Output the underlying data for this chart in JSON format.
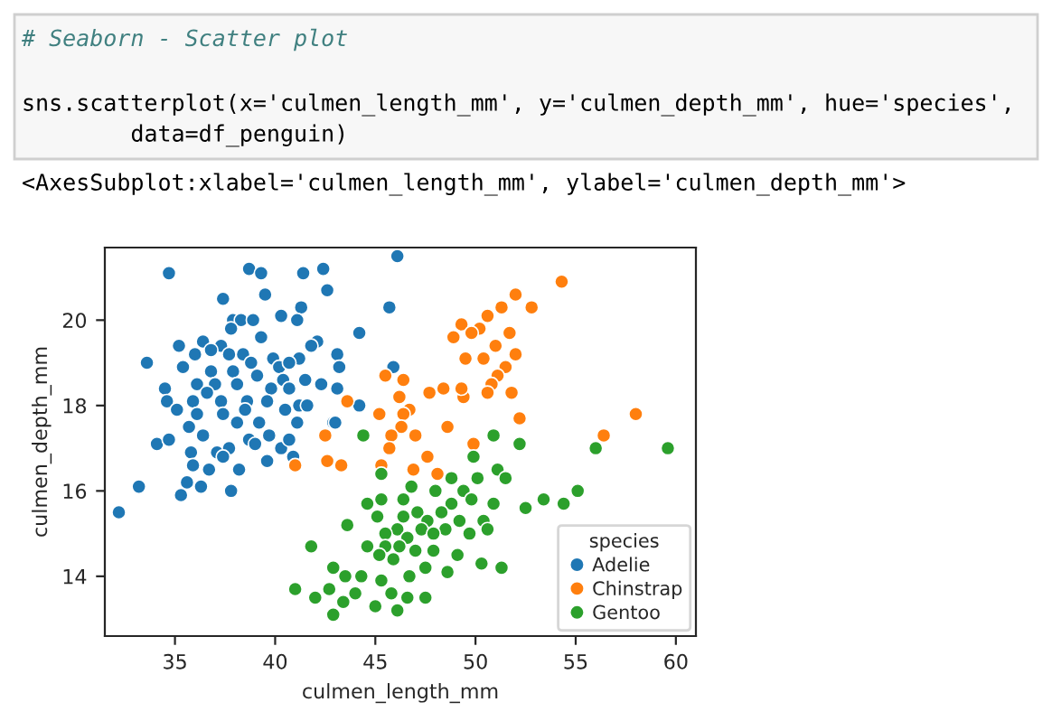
{
  "chart_data": {
    "type": "scatter",
    "xlabel": "culmen_length_mm",
    "ylabel": "culmen_depth_mm",
    "legend_title": "species",
    "annotations": [
      "# Seaborn - Scatter plot",
      "sns.scatterplot(x='culmen_length_mm', y='culmen_depth_mm', hue='species',",
      "        data=df_penguin)",
      "<AxesSubplot:xlabel='culmen_length_mm', ylabel='culmen_depth_mm'>"
    ],
    "xlim": [
      31.5,
      61
    ],
    "ylim": [
      12.6,
      21.7
    ],
    "xticks": [
      35,
      40,
      45,
      50,
      55,
      60
    ],
    "yticks": [
      14,
      16,
      18,
      20
    ],
    "grid": false,
    "legend": "bottom right",
    "marker": "circle",
    "series": [
      {
        "name": "Adelie",
        "color": "#1f77b4",
        "x": [
          34.7,
          38.7,
          39.3,
          41.4,
          42.4,
          42.6,
          37.4,
          39.5,
          41.3,
          40.3,
          37.9,
          38.3,
          38.9,
          41.1,
          37.8,
          39.3,
          36.4,
          35.2,
          37.3,
          42.1,
          41.8,
          36.0,
          36.8,
          37.7,
          38.4,
          39.9,
          41.2,
          43.1,
          33.6,
          35.4,
          36.8,
          38.8,
          40.2,
          40.7,
          43.2,
          37.9,
          39.1,
          40.4,
          41.5,
          36.1,
          37.0,
          38.1,
          39.8,
          42.3,
          43.1,
          34.5,
          36.6,
          40.7,
          34.6,
          35.9,
          37.3,
          38.6,
          39.6,
          41.2,
          35.1,
          36.1,
          37.4,
          38.5,
          40.5,
          41.6,
          35.7,
          38.1,
          39.2,
          41.1,
          42.9,
          36.4,
          38.7,
          39.7,
          34.1,
          34.7,
          35.8,
          37.1,
          37.7,
          39.0,
          40.3,
          40.7,
          35.9,
          36.7,
          37.4,
          38.2,
          39.6,
          40.9,
          35.6,
          36.3,
          37.8,
          33.2,
          35.3,
          32.2,
          46.1,
          45.7,
          44.2,
          44.2,
          43.0,
          45.9
        ],
        "values": [
          21.1,
          21.2,
          21.1,
          21.1,
          21.2,
          20.7,
          20.5,
          20.6,
          20.3,
          20.1,
          20.0,
          20.0,
          20.0,
          20.0,
          19.8,
          19.6,
          19.5,
          19.4,
          19.4,
          19.5,
          19.4,
          19.2,
          19.3,
          19.2,
          19.2,
          19.1,
          19.1,
          19.2,
          19.0,
          18.9,
          18.8,
          19.0,
          18.9,
          19.0,
          18.9,
          18.8,
          18.7,
          18.6,
          18.6,
          18.5,
          18.5,
          18.5,
          18.4,
          18.5,
          18.4,
          18.4,
          18.3,
          18.4,
          18.1,
          18.1,
          18.1,
          18.1,
          18.1,
          18.0,
          17.9,
          17.8,
          17.8,
          17.9,
          17.9,
          18.0,
          17.5,
          17.6,
          17.6,
          17.6,
          17.6,
          17.3,
          17.2,
          17.3,
          17.1,
          17.2,
          16.9,
          16.9,
          17.0,
          17.1,
          17.0,
          17.2,
          16.6,
          16.5,
          16.8,
          16.5,
          16.7,
          16.8,
          16.2,
          16.1,
          16.0,
          16.1,
          15.9,
          15.5,
          21.5,
          20.3,
          19.7,
          18.0,
          17.6,
          18.9
        ]
      },
      {
        "name": "Chinstrap",
        "color": "#ff7f0e",
        "x": [
          43.6,
          42.5,
          41.0,
          42.6,
          43.3,
          45.5,
          46.4,
          47.7,
          46.2,
          46.7,
          46.4,
          45.2,
          46.3,
          47.0,
          48.6,
          45.8,
          45.7,
          45.3,
          46.9,
          47.6,
          48.1,
          49.3,
          48.9,
          49.4,
          52.0,
          51.3,
          50.6,
          50.2,
          51.7,
          49.8,
          51.0,
          52.0,
          50.4,
          51.5,
          49.5,
          51.1,
          50.8,
          49.3,
          50.6,
          51.8,
          48.4,
          52.2,
          54.3,
          52.8,
          58.0,
          56.4,
          49.9
        ],
        "values": [
          18.1,
          17.3,
          16.6,
          16.7,
          16.6,
          18.7,
          18.6,
          18.3,
          18.2,
          17.9,
          17.8,
          17.8,
          17.5,
          17.3,
          17.5,
          17.3,
          17.0,
          16.6,
          16.5,
          16.8,
          16.4,
          19.9,
          19.6,
          18.2,
          20.6,
          20.3,
          20.1,
          19.8,
          19.7,
          19.7,
          19.4,
          19.2,
          19.1,
          18.9,
          19.1,
          18.7,
          18.5,
          18.4,
          18.3,
          18.3,
          18.4,
          17.7,
          20.9,
          20.3,
          17.8,
          17.3,
          17.1
        ]
      },
      {
        "name": "Gentoo",
        "color": "#2ca02c",
        "x": [
          44.4,
          45.3,
          50.9,
          52.2,
          56.0,
          59.6,
          49.9,
          51.1,
          51.5,
          48.8,
          50.1,
          55.1,
          53.4,
          54.4,
          52.5,
          46.8,
          48.0,
          49.4,
          45.3,
          44.6,
          46.4,
          48.8,
          49.8,
          50.9,
          47.1,
          48.3,
          45.1,
          46.4,
          47.6,
          49.2,
          50.4,
          43.6,
          46.1,
          47.3,
          48.5,
          49.7,
          50.6,
          45.5,
          46.6,
          47.9,
          44.6,
          45.5,
          46.2,
          47.0,
          47.9,
          49.1,
          41.8,
          45.2,
          45.9,
          47.5,
          48.6,
          50.3,
          51.3,
          42.9,
          43.5,
          44.3,
          45.3,
          46.7,
          45.8,
          44.0,
          42.7,
          41.0,
          42.0,
          43.4,
          45.0,
          46.1,
          42.9,
          46.6,
          47.5
        ],
        "values": [
          17.3,
          16.4,
          17.3,
          17.1,
          17.0,
          17.0,
          16.8,
          16.5,
          16.3,
          16.3,
          16.3,
          16.0,
          15.8,
          15.7,
          15.6,
          16.1,
          16.0,
          16.0,
          15.8,
          15.7,
          15.8,
          15.7,
          15.8,
          15.7,
          15.5,
          15.5,
          15.4,
          15.4,
          15.3,
          15.3,
          15.3,
          15.2,
          15.1,
          15.1,
          15.1,
          15.0,
          15.1,
          15.0,
          14.9,
          15.0,
          14.7,
          14.7,
          14.7,
          14.6,
          14.6,
          14.5,
          14.7,
          14.5,
          14.4,
          14.2,
          14.1,
          14.3,
          14.2,
          14.2,
          14.0,
          14.0,
          13.9,
          14.0,
          13.6,
          13.6,
          13.7,
          13.7,
          13.5,
          13.4,
          13.3,
          13.2,
          13.1,
          13.5,
          13.5
        ]
      }
    ]
  }
}
